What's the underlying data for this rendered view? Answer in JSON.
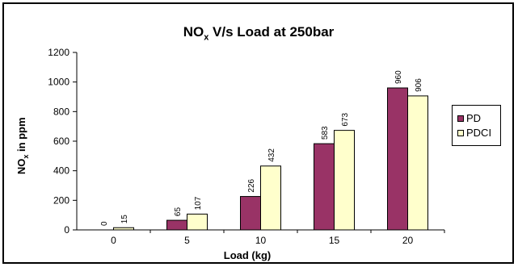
{
  "chart_data": {
    "type": "bar",
    "title_main": "NO",
    "title_sub": "x",
    "title_rest": " V/s Load at 250bar",
    "ylabel_main": "NO",
    "ylabel_sub": "x",
    "ylabel_rest": " in ppm",
    "xlabel": "Load (kg)",
    "categories": [
      "0",
      "5",
      "10",
      "15",
      "20"
    ],
    "ylim": [
      0,
      1200
    ],
    "yticks": [
      "0",
      "200",
      "400",
      "600",
      "800",
      "1000",
      "1200"
    ],
    "grid": false,
    "legend_position": "right",
    "series": [
      {
        "name": "PD",
        "values": [
          0,
          65,
          226,
          583,
          960
        ],
        "labels": [
          "0",
          "65",
          "226",
          "583",
          "960"
        ],
        "color": "#993366"
      },
      {
        "name": "PDCI",
        "values": [
          15,
          107,
          432,
          673,
          906
        ],
        "labels": [
          "15",
          "107",
          "432",
          "673",
          "906"
        ],
        "color": "#FFFFCC"
      }
    ]
  }
}
